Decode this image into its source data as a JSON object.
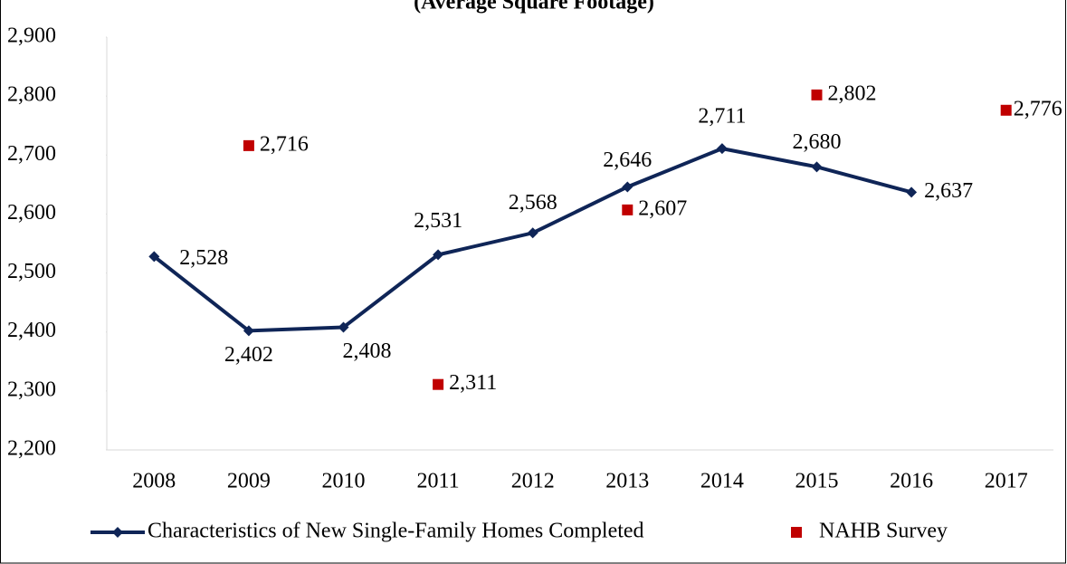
{
  "chart_data": {
    "type": "line",
    "title": "(Average Square Footage)",
    "categories": [
      "2008",
      "2009",
      "2010",
      "2011",
      "2012",
      "2013",
      "2014",
      "2015",
      "2016",
      "2017"
    ],
    "series": [
      {
        "name": "Characteristics of New Single-Family Homes Completed",
        "type": "line",
        "color": "#0f2557",
        "values": [
          2528,
          2402,
          2408,
          2531,
          2568,
          2646,
          2711,
          2680,
          2637,
          null
        ],
        "value_labels": [
          "2,528",
          "2,402",
          "2,408",
          "2,531",
          "2,568",
          "2,646",
          "2,711",
          "2,680",
          "2,637",
          null
        ]
      },
      {
        "name": "NAHB Survey",
        "type": "scatter",
        "color": "#c00000",
        "values": [
          null,
          2716,
          null,
          2311,
          null,
          2607,
          null,
          2802,
          null,
          2776
        ],
        "value_labels": [
          null,
          "2,716",
          null,
          "2,311",
          null,
          "2,607",
          null,
          "2,802",
          null,
          "2,776"
        ]
      }
    ],
    "ylim": [
      2200,
      2900
    ],
    "yticks": [
      {
        "value": 2200,
        "label": "2,200"
      },
      {
        "value": 2300,
        "label": "2,300"
      },
      {
        "value": 2400,
        "label": "2,400"
      },
      {
        "value": 2500,
        "label": "2,500"
      },
      {
        "value": 2600,
        "label": "2,600"
      },
      {
        "value": 2700,
        "label": "2,700"
      },
      {
        "value": 2800,
        "label": "2,800"
      },
      {
        "value": 2900,
        "label": "2,900"
      }
    ],
    "grid": false,
    "legend": "bottom"
  }
}
